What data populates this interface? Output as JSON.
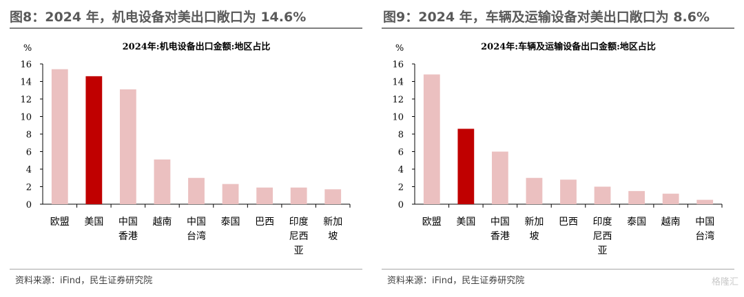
{
  "panels": [
    {
      "heading": "图8：2024 年，机电设备对美出口敞口为 14.6%",
      "source": "资料来源：iFind，民生证券研究院"
    },
    {
      "heading": "图9：2024 年，车辆及运输设备对美出口敞口为 8.6%",
      "source": "资料来源：iFind，民生证券研究院"
    }
  ],
  "watermark": "格隆汇",
  "colors": {
    "highlight": "#c00000",
    "normal": "#ebc0c0",
    "axis": "#000000"
  },
  "chart_data": [
    {
      "type": "bar",
      "title": "2024年:机电设备出口金额:地区占比",
      "ylabel": "%",
      "ylim": [
        0,
        16
      ],
      "yticks": [
        0,
        2,
        4,
        6,
        8,
        10,
        12,
        14,
        16
      ],
      "categories": [
        [
          "欧盟"
        ],
        [
          "美国"
        ],
        [
          "中国",
          "香港"
        ],
        [
          "越南"
        ],
        [
          "中国",
          "台湾"
        ],
        [
          "泰国"
        ],
        [
          "巴西"
        ],
        [
          "印度",
          "尼西",
          "亚"
        ],
        [
          "新加",
          "坡"
        ]
      ],
      "values": [
        15.4,
        14.6,
        13.1,
        5.1,
        3.0,
        2.3,
        1.9,
        1.9,
        1.7
      ],
      "highlight_index": 1
    },
    {
      "type": "bar",
      "title": "2024年:车辆及运输设备出口金额:地区占比",
      "ylabel": "%",
      "ylim": [
        0,
        16
      ],
      "yticks": [
        0,
        2,
        4,
        6,
        8,
        10,
        12,
        14,
        16
      ],
      "categories": [
        [
          "欧盟"
        ],
        [
          "美国"
        ],
        [
          "中国",
          "香港"
        ],
        [
          "新加",
          "坡"
        ],
        [
          "巴西"
        ],
        [
          "印度",
          "尼西",
          "亚"
        ],
        [
          "泰国"
        ],
        [
          "越南"
        ],
        [
          "中国",
          "台湾"
        ]
      ],
      "values": [
        14.8,
        8.6,
        6.0,
        3.0,
        2.8,
        2.0,
        1.5,
        1.2,
        0.5
      ],
      "highlight_index": 1
    }
  ]
}
